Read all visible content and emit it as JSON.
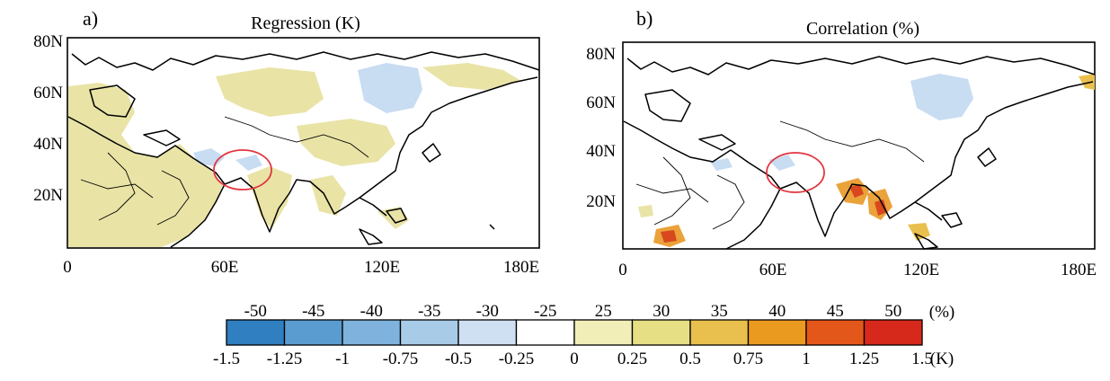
{
  "panels": [
    {
      "label": "a)",
      "title": "Regression (K)",
      "lat_ticks": [
        "80N",
        "60N",
        "40N",
        "20N"
      ],
      "lon_ticks": [
        "0",
        "60E",
        "120E",
        "180E"
      ]
    },
    {
      "label": "b)",
      "title": "Correlation (%)",
      "lat_ticks": [
        "80N",
        "60N",
        "40N",
        "20N"
      ],
      "lon_ticks": [
        "0",
        "60E",
        "120E",
        "180E"
      ]
    }
  ],
  "colorbar": {
    "top_labels": [
      "-50",
      "-45",
      "-40",
      "-35",
      "-30",
      "-25",
      "25",
      "30",
      "35",
      "40",
      "45",
      "50"
    ],
    "top_unit": "(%)",
    "bottom_labels": [
      "-1.5",
      "-1.25",
      "-1",
      "-0.75",
      "-0.5",
      "-0.25",
      "0",
      "0.25",
      "0.5",
      "0.75",
      "1",
      "1.25",
      "1.5"
    ],
    "bottom_unit": "(K)",
    "colors": [
      "#2f7fc1",
      "#5a9bd0",
      "#7fb2dc",
      "#a8cbe8",
      "#cfe0f2",
      "#ffffff",
      "#f2eeb8",
      "#e6df83",
      "#e9c04d",
      "#ea9a1f",
      "#e4571a",
      "#d7281c"
    ]
  },
  "colors": {
    "land_positive": "#e9e3a6",
    "land_negative": "#c8dcf2",
    "hotspot_orange": "#eaa23a",
    "hotspot_red": "#d8471e",
    "circle": "#e2353f"
  }
}
